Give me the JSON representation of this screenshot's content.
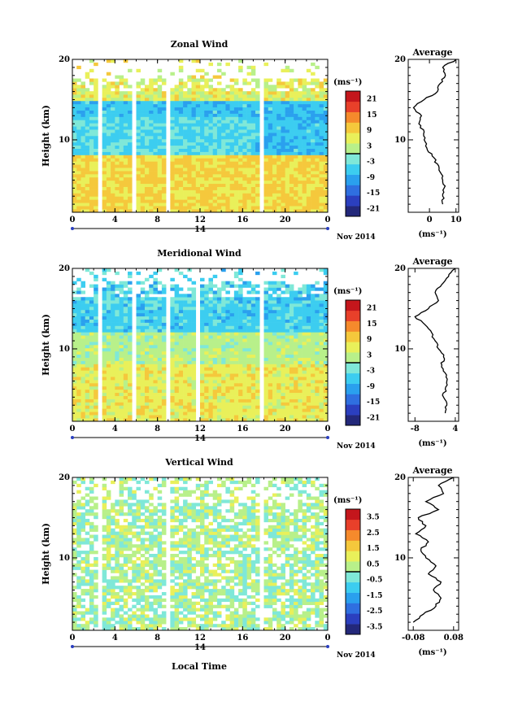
{
  "chart_data": [
    {
      "type": "heatmap",
      "title": "Zonal Wind",
      "xlabel": "",
      "ylabel": "Height (km)",
      "xlim": [
        0,
        24
      ],
      "ylim": [
        1,
        20
      ],
      "x_ticks": [
        "0",
        "4",
        "8",
        "12",
        "16",
        "20",
        "0"
      ],
      "y_ticks": [
        "10",
        "20"
      ],
      "date_axis": {
        "day": "14",
        "month_label": "Nov 2014"
      },
      "colorbar": {
        "unit": "(ms⁻¹)",
        "ticks": [
          "21",
          "15",
          "9",
          "3",
          "-3",
          "-9",
          "-15",
          "-21"
        ],
        "range": [
          -24,
          24
        ]
      },
      "data_gaps_hours": [
        [
          2.2,
          2.7
        ],
        [
          5.6,
          6.0
        ],
        [
          8.7,
          9.2
        ],
        [
          17.5,
          17.9
        ]
      ],
      "average": {
        "title": "Average",
        "xlabel": "(ms⁻¹)",
        "x_ticks": [
          "0",
          "10"
        ],
        "xlim": [
          -8,
          11
        ],
        "profile": {
          "height_km": [
            2,
            3,
            4,
            5,
            6,
            7,
            8,
            9,
            10,
            11,
            12,
            13,
            14,
            15,
            16,
            17,
            18,
            19,
            20
          ],
          "value": [
            5,
            5,
            5.5,
            5,
            4,
            3,
            1,
            -1,
            -2,
            -2,
            -4,
            -3,
            -6,
            -2,
            3,
            4,
            6,
            5,
            10
          ]
        }
      }
    },
    {
      "type": "heatmap",
      "title": "Meridional Wind",
      "xlabel": "",
      "ylabel": "Height (km)",
      "xlim": [
        0,
        24
      ],
      "ylim": [
        1,
        20
      ],
      "x_ticks": [
        "0",
        "4",
        "8",
        "12",
        "16",
        "20",
        "0"
      ],
      "y_ticks": [
        "10",
        "20"
      ],
      "date_axis": {
        "day": "14",
        "month_label": "Nov 2014"
      },
      "colorbar": {
        "unit": "(ms⁻¹)",
        "ticks": [
          "21",
          "15",
          "9",
          "3",
          "-3",
          "-9",
          "-15",
          "-21"
        ],
        "range": [
          -24,
          24
        ]
      },
      "data_gaps_hours": [
        [
          0.3,
          0.6
        ],
        [
          2.2,
          2.7
        ],
        [
          5.6,
          6.0
        ],
        [
          8.7,
          9.2
        ],
        [
          11.6,
          11.9
        ],
        [
          17.5,
          17.9
        ]
      ],
      "average": {
        "title": "Average",
        "xlabel": "(ms⁻¹)",
        "x_ticks": [
          "-8",
          "4"
        ],
        "xlim": [
          -10,
          5
        ],
        "profile": {
          "height_km": [
            2,
            3,
            4,
            5,
            6,
            7,
            8,
            9,
            10,
            11,
            12,
            13,
            14,
            15,
            16,
            17,
            18,
            19,
            20
          ],
          "value": [
            1,
            1.5,
            0.5,
            1,
            1.5,
            1,
            0,
            0.5,
            -1,
            -2,
            -3,
            -5,
            -8,
            -4,
            -1,
            -2,
            0,
            2,
            4
          ]
        }
      }
    },
    {
      "type": "heatmap",
      "title": "Vertical Wind",
      "xlabel": "Local Time",
      "ylabel": "Height (km)",
      "xlim": [
        0,
        24
      ],
      "ylim": [
        1,
        20
      ],
      "x_ticks": [
        "0",
        "4",
        "8",
        "12",
        "16",
        "20",
        "0"
      ],
      "y_ticks": [
        "10",
        "20"
      ],
      "date_axis": {
        "day": "14",
        "month_label": "Nov 2014"
      },
      "colorbar": {
        "unit": "(ms⁻¹)",
        "ticks": [
          "3.5",
          "2.5",
          "1.5",
          "0.5",
          "-0.5",
          "-1.5",
          "-2.5",
          "-3.5"
        ],
        "range": [
          -4,
          4
        ]
      },
      "data_gaps_hours": [
        [
          0.3,
          0.6
        ],
        [
          2.2,
          2.7
        ],
        [
          8.7,
          9.2
        ],
        [
          17.5,
          17.9
        ]
      ],
      "average": {
        "title": "Average",
        "xlabel": "(ms⁻¹)",
        "x_ticks": [
          "-0.08",
          "0.08"
        ],
        "xlim": [
          -0.1,
          0.1
        ],
        "profile": {
          "height_km": [
            2,
            3,
            4,
            5,
            6,
            7,
            8,
            9,
            10,
            11,
            12,
            13,
            14,
            15,
            16,
            17,
            18,
            19,
            20
          ],
          "value": [
            -0.08,
            -0.04,
            0.01,
            0.03,
            0.0,
            0.03,
            -0.02,
            0.01,
            -0.03,
            -0.05,
            -0.02,
            -0.07,
            -0.03,
            -0.06,
            0.02,
            -0.03,
            0.04,
            0.02,
            0.08
          ]
        }
      }
    }
  ]
}
